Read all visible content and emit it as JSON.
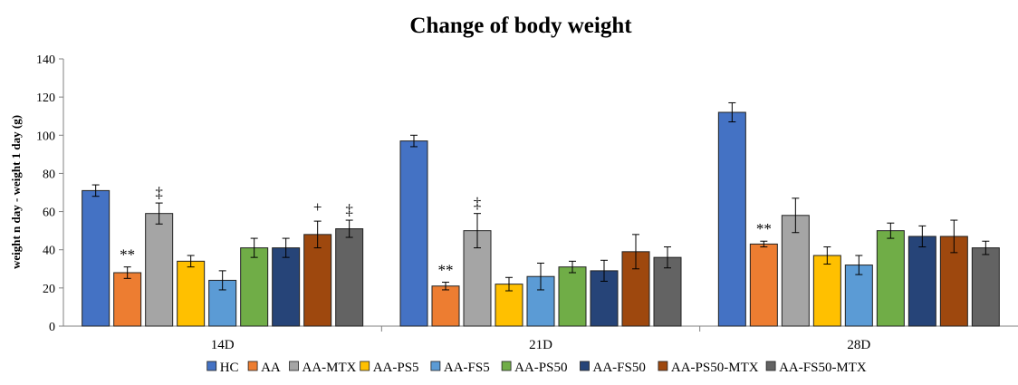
{
  "chart_data": {
    "type": "bar",
    "title": "Change of body weight",
    "xlabel": "",
    "ylabel": "weight n day - weight 1 day (g)",
    "ylim": [
      0,
      140
    ],
    "yticks": [
      "0",
      "20",
      "40",
      "60",
      "80",
      "100",
      "120",
      "140"
    ],
    "grid": false,
    "legend_position": "bottom",
    "categories": [
      "14D",
      "21D",
      "28D"
    ],
    "series": [
      {
        "name": "HC",
        "color": "#4472C4",
        "values": [
          71,
          97,
          112
        ],
        "errors": [
          3,
          3,
          5
        ]
      },
      {
        "name": "AA",
        "color": "#ED7D31",
        "values": [
          28,
          21,
          43
        ],
        "errors": [
          3,
          2,
          1.5
        ]
      },
      {
        "name": "AA-MTX",
        "color": "#A5A5A5",
        "values": [
          59,
          50,
          58
        ],
        "errors": [
          5.5,
          9,
          9
        ]
      },
      {
        "name": "AA-PS5",
        "color": "#FFC000",
        "values": [
          34,
          22,
          37
        ],
        "errors": [
          3,
          3.5,
          4.5
        ]
      },
      {
        "name": "AA-FS5",
        "color": "#5B9BD5",
        "values": [
          24,
          26,
          32
        ],
        "errors": [
          5,
          7,
          5
        ]
      },
      {
        "name": "AA-PS50",
        "color": "#70AD47",
        "values": [
          41,
          31,
          50
        ],
        "errors": [
          5,
          3,
          4
        ]
      },
      {
        "name": "AA-FS50",
        "color": "#264478",
        "values": [
          41,
          29,
          47
        ],
        "errors": [
          5,
          5.5,
          5.5
        ]
      },
      {
        "name": "AA-PS50-MTX",
        "color": "#9E480E",
        "values": [
          48,
          39,
          47
        ],
        "errors": [
          7,
          9,
          8.5
        ]
      },
      {
        "name": "AA-FS50-MTX",
        "color": "#636363",
        "values": [
          51,
          36,
          41
        ],
        "errors": [
          4.5,
          5.5,
          3.5
        ]
      }
    ],
    "annotations": [
      {
        "category": 0,
        "series": 1,
        "text": "**"
      },
      {
        "category": 0,
        "series": 2,
        "text": "‡"
      },
      {
        "category": 0,
        "series": 7,
        "text": "+"
      },
      {
        "category": 0,
        "series": 8,
        "text": "‡"
      },
      {
        "category": 1,
        "series": 1,
        "text": "**"
      },
      {
        "category": 1,
        "series": 2,
        "text": "‡"
      },
      {
        "category": 2,
        "series": 1,
        "text": "**"
      }
    ]
  }
}
